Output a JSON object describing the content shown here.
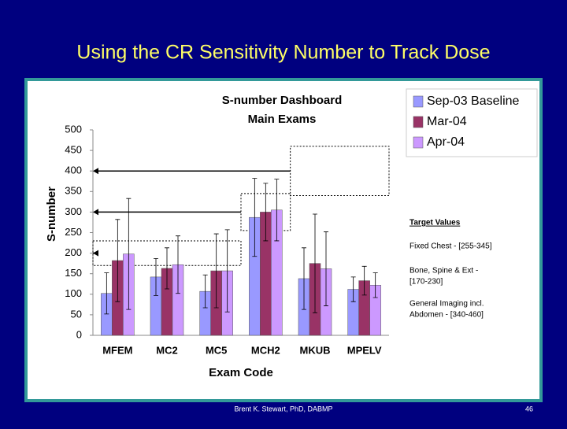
{
  "slide_title": "Using the CR Sensitivity Number to Track Dose",
  "footer": "Brent K. Stewart, PhD, DABMP",
  "page_number": "46",
  "chart_data": {
    "type": "bar",
    "title_lines": [
      "S-number Dashboard",
      "Main Exams"
    ],
    "x_label": "Exam Code",
    "y_label": "S-number",
    "categories": [
      "MFEM",
      "MC2",
      "MC5",
      "MCH2",
      "MKUB",
      "MPELV"
    ],
    "series": [
      {
        "name": "Sep-03 Baseline",
        "color": "#9999ff",
        "values": [
          102,
          142,
          107,
          287,
          138,
          112
        ],
        "errors": [
          50,
          45,
          40,
          95,
          75,
          30
        ]
      },
      {
        "name": "Mar-04",
        "color": "#993366",
        "values": [
          182,
          163,
          157,
          300,
          175,
          133
        ],
        "errors": [
          100,
          50,
          90,
          70,
          120,
          35
        ]
      },
      {
        "name": "Apr-04",
        "color": "#cc99ff",
        "values": [
          198,
          172,
          157,
          305,
          162,
          122
        ],
        "errors": [
          135,
          70,
          100,
          75,
          90,
          30
        ]
      }
    ],
    "ylim": [
      0,
      500
    ],
    "yticks": [
      0,
      50,
      100,
      150,
      200,
      250,
      300,
      350,
      400,
      450,
      500
    ],
    "target_heading": "Target Values",
    "target_ranges": [
      {
        "lines": [
          "Fixed Chest - [255-345]"
        ],
        "low": 255,
        "high": 345
      },
      {
        "lines": [
          "Bone, Spine & Ext -",
          "[170-230]"
        ],
        "low": 170,
        "high": 230
      },
      {
        "lines": [
          "General Imaging incl.",
          "Abdomen - [340-460]"
        ],
        "low": 340,
        "high": 460
      }
    ],
    "legend": "top-right"
  }
}
